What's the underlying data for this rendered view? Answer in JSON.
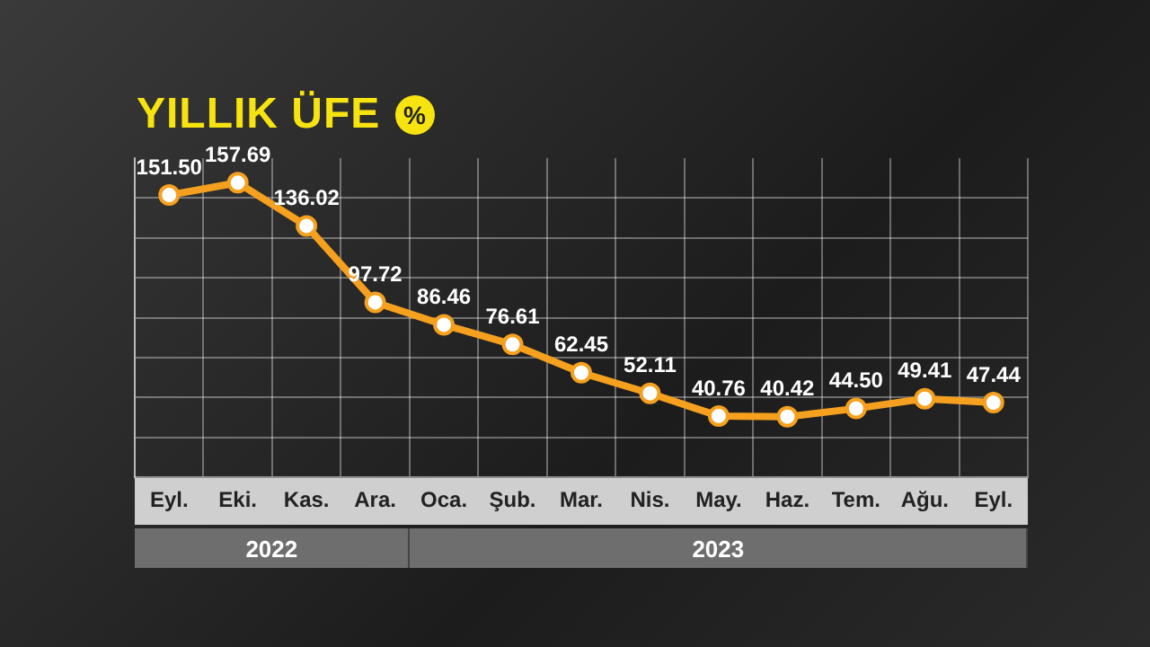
{
  "chart_data": {
    "type": "line",
    "title": "YILLIK ÜFE",
    "ylabel": "%",
    "categories": [
      "Eyl.",
      "Eki.",
      "Kas.",
      "Ara.",
      "Oca.",
      "Şub.",
      "Mar.",
      "Nis.",
      "May.",
      "Haz.",
      "Tem.",
      "Ağu.",
      "Eyl."
    ],
    "series": [
      {
        "color": "#f5a01e",
        "values": [
          151.5,
          157.69,
          136.02,
          97.72,
          86.46,
          76.61,
          62.45,
          52.11,
          40.76,
          40.42,
          44.5,
          49.41,
          47.44
        ],
        "value_labels": [
          "151.50",
          "157.69",
          "136.02",
          "97.72",
          "86.46",
          "76.61",
          "62.45",
          "52.11",
          "40.76",
          "40.42",
          "44.50",
          "49.41",
          "47.44"
        ]
      }
    ],
    "ylim": [
      10,
      170
    ],
    "yticks": [
      {
        "value": 30,
        "label": null
      },
      {
        "value": 50,
        "label": null
      },
      {
        "value": 70,
        "label": null
      },
      {
        "value": 90,
        "label": null
      },
      {
        "value": 110,
        "label": null
      },
      {
        "value": 130,
        "label": null
      },
      {
        "value": 150,
        "label": null
      }
    ],
    "annotations": [
      "2022",
      "2023"
    ],
    "grid": true,
    "marker": "circle",
    "line_style": "solid",
    "tick_labels": "x",
    "legend": false
  }
}
